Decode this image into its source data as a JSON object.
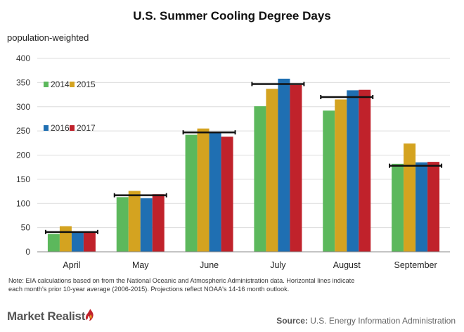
{
  "chart_data": {
    "type": "bar",
    "title": "U.S. Summer Cooling Degree Days",
    "ylabel": "population-weighted",
    "xlabel": "",
    "categories": [
      "April",
      "May",
      "June",
      "July",
      "August",
      "September"
    ],
    "ylim": [
      0,
      400
    ],
    "yticks": [
      0,
      50,
      100,
      150,
      200,
      250,
      300,
      350,
      400
    ],
    "grid": true,
    "series": [
      {
        "name": "2014",
        "color": "#5cb85c",
        "values": [
          37,
          113,
          242,
          301,
          292,
          182
        ]
      },
      {
        "name": "2015",
        "color": "#d4a320",
        "values": [
          53,
          126,
          255,
          337,
          315,
          224
        ]
      },
      {
        "name": "2016",
        "color": "#1f6fb2",
        "values": [
          42,
          111,
          246,
          358,
          334,
          185
        ]
      },
      {
        "name": "2017",
        "color": "#c0222b",
        "values": [
          40,
          119,
          238,
          345,
          335,
          186
        ]
      }
    ],
    "ten_year_average": {
      "name": "10-year average (2006-2015)",
      "values": [
        41,
        117,
        247,
        347,
        320,
        178
      ]
    },
    "legend": [
      "2014",
      "2015",
      "2016",
      "2017"
    ]
  },
  "note": "Note: EIA calculations based on from the National Oceanic and Atmospheric Administration data. Horizontal lines indicate each month's prior 10-year average (2006-2015). Projections reflect NOAA's 14-16 month outlook.",
  "brand": "Market Realist",
  "source_label": "Source:",
  "source_text": "U.S. Energy Information Administration"
}
